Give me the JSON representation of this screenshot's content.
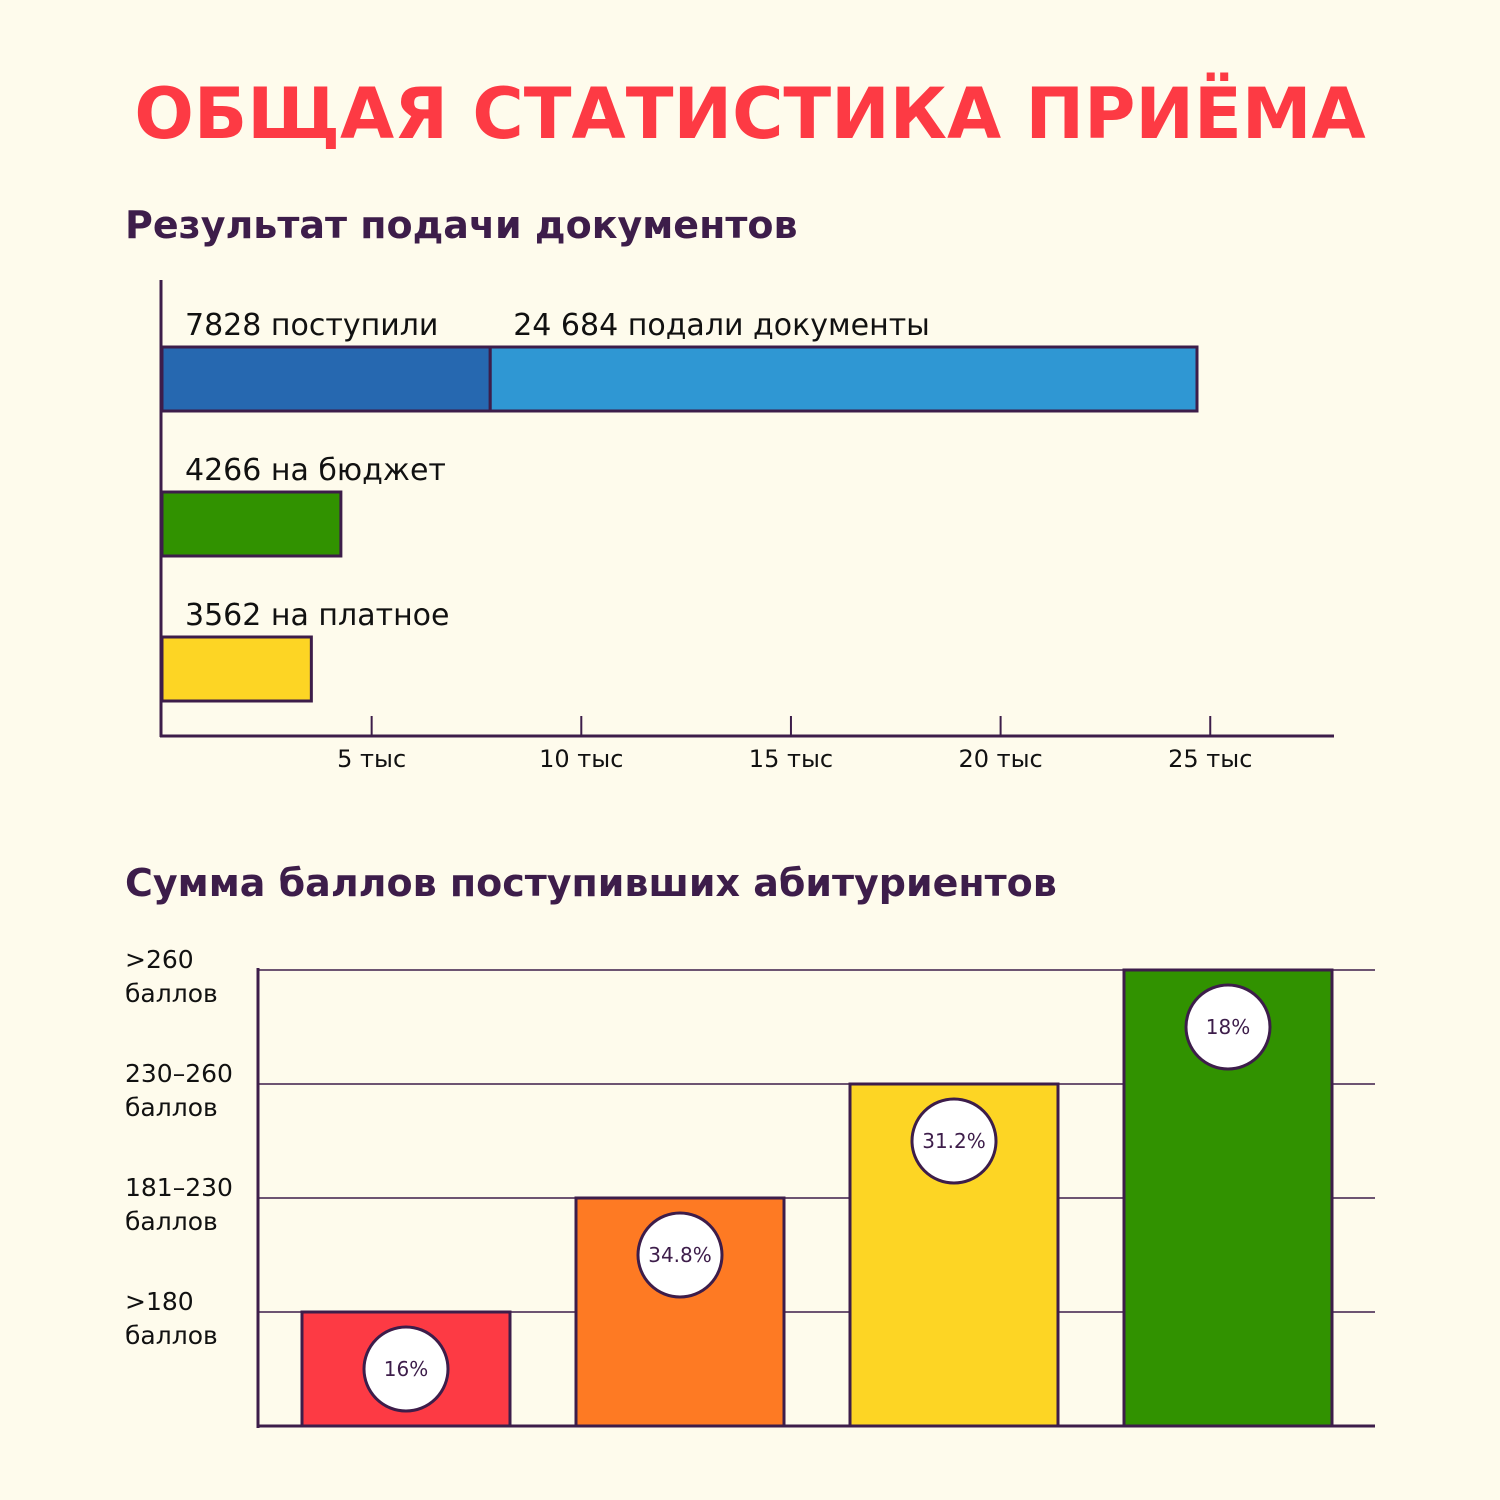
{
  "title": "ОБЩАЯ СТАТИСТИКА ПРИЁМА",
  "chart_data": [
    {
      "type": "bar",
      "orientation": "horizontal",
      "title": "Результат подачи документов",
      "xlim": [
        0,
        28000
      ],
      "ticks": [
        {
          "value": 5000,
          "label": "5 тыс"
        },
        {
          "value": 10000,
          "label": "10 тыс"
        },
        {
          "value": 15000,
          "label": "15 тыс"
        },
        {
          "value": 20000,
          "label": "20 тыс"
        },
        {
          "value": 25000,
          "label": "25 тыс"
        }
      ],
      "rows": [
        {
          "segments": [
            {
              "value": 7828,
              "label": "7828 поступили",
              "color": "#2668b0"
            },
            {
              "value": 24684,
              "label": "24 684 подали документы",
              "color": "#2f97d3"
            }
          ]
        },
        {
          "segments": [
            {
              "value": 4266,
              "label": "4266 на бюджет",
              "color": "#319200"
            }
          ]
        },
        {
          "segments": [
            {
              "value": 3562,
              "label": "3562 на платное",
              "color": "#fdd524"
            }
          ]
        }
      ]
    },
    {
      "type": "bar",
      "title": "Сумма баллов поступивших абитуриентов",
      "levels": [
        {
          "line1": ">180",
          "line2": "баллов"
        },
        {
          "line1": "181–230",
          "line2": "баллов"
        },
        {
          "line1": "230–260",
          "line2": "баллов"
        },
        {
          "line1": ">260",
          "line2": "баллов"
        }
      ],
      "bars": [
        {
          "level": 1,
          "pct": "16%",
          "color": "#fd3a44"
        },
        {
          "level": 2,
          "pct": "34.8%",
          "color": "#fe7a23"
        },
        {
          "level": 3,
          "pct": "31.2%",
          "color": "#fdd524"
        },
        {
          "level": 4,
          "pct": "18%",
          "color": "#319200"
        }
      ]
    }
  ]
}
